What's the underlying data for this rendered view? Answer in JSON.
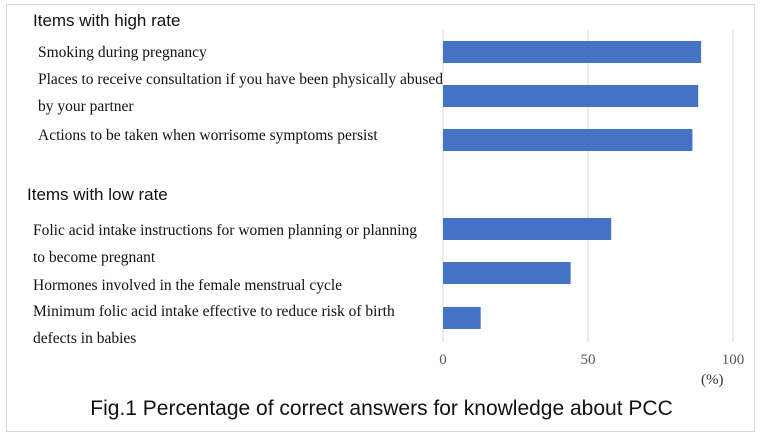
{
  "chart_data": {
    "type": "bar",
    "orientation": "horizontal",
    "title": "Fig.1 Percentage of correct answers for knowledge about PCC",
    "unit": "(%)",
    "xlim": [
      0,
      100
    ],
    "xticks": [
      "0",
      "50",
      "100"
    ],
    "grid": true,
    "bar_color": "#4472c4",
    "groups": [
      {
        "label": "Items with high rate",
        "items": [
          {
            "label": "Smoking during pregnancy",
            "value": 89
          },
          {
            "label": "Places to receive consultation if you have been physically abused by your partner",
            "value": 88
          },
          {
            "label": "Actions to be taken when worrisome symptoms  persist",
            "value": 86
          }
        ]
      },
      {
        "label": "Items with low rate",
        "items": [
          {
            "label": "Folic acid intake instructions for women planning or planning to become pregnant",
            "value": 58
          },
          {
            "label": "Hormones involved in the female menstrual cycle",
            "value": 44
          },
          {
            "label": "Minimum folic acid intake effective to reduce risk of birth defects in babies",
            "value": 13
          }
        ]
      }
    ]
  }
}
